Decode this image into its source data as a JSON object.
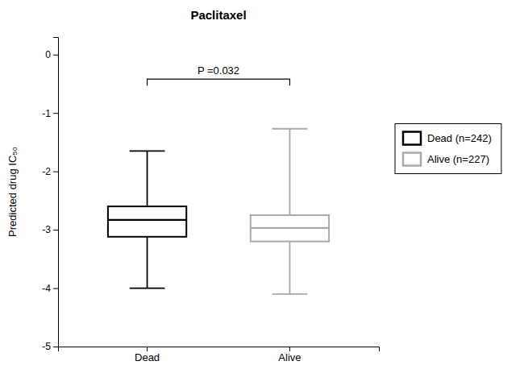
{
  "chart_data": {
    "type": "box",
    "title": "Paclitaxel",
    "y_label": "Predicted drug IC₅₀",
    "categories": [
      "Dead",
      "Alive"
    ],
    "series": [
      {
        "name": "Dead (n=242)",
        "color": "#000000",
        "whisker_low": -4.0,
        "q1": -3.12,
        "median": -2.83,
        "q3": -2.6,
        "whisker_high": -1.65
      },
      {
        "name": "Alive (n=227)",
        "color": "#aaaaaa",
        "whisker_low": -4.1,
        "q1": -3.2,
        "median": -2.97,
        "q3": -2.75,
        "whisker_high": -1.27
      }
    ],
    "annotations": [
      {
        "text": "P =0.032",
        "y": -0.42
      }
    ],
    "ylim": [
      -5,
      0.3
    ],
    "yticks": [
      0,
      -1,
      -2,
      -3,
      -4,
      -5
    ],
    "grid": false,
    "legend": "right"
  }
}
